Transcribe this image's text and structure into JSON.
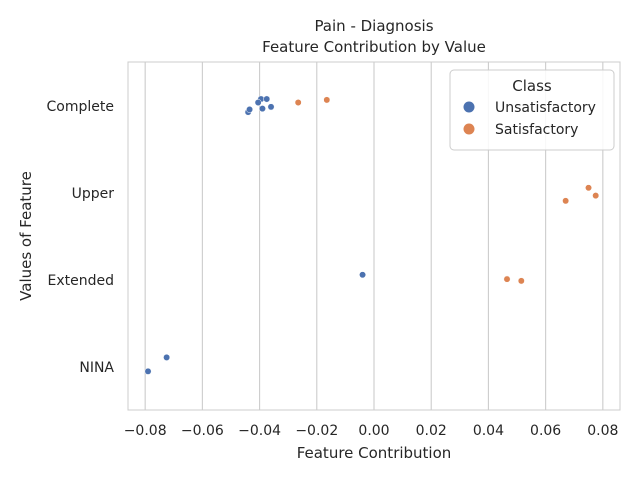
{
  "chart_data": {
    "type": "scatter",
    "title": "Pain - Diagnosis",
    "subtitle": "Feature Contribution by Value",
    "xlabel": "Feature Contribution",
    "ylabel": "Values of Feature",
    "xlim": [
      -0.086,
      0.086
    ],
    "xticks": [
      -0.08,
      -0.06,
      -0.04,
      -0.02,
      0.0,
      0.02,
      0.04,
      0.06,
      0.08
    ],
    "xtick_labels": [
      "−0.08",
      "−0.06",
      "−0.04",
      "−0.02",
      "0.00",
      "0.02",
      "0.04",
      "0.06",
      "0.08"
    ],
    "categories": [
      "Complete",
      "Upper",
      "Extended",
      "NINA"
    ],
    "grid": "vertical",
    "legend": {
      "title": "Class",
      "placement": "top-right"
    },
    "series": [
      {
        "name": "Unsatisfactory",
        "color": "#4c72b0",
        "points": [
          {
            "category": "Complete",
            "x": -0.0395,
            "jitter": 0.08
          },
          {
            "category": "Complete",
            "x": -0.0375,
            "jitter": 0.08
          },
          {
            "category": "Complete",
            "x": -0.0405,
            "jitter": 0.04
          },
          {
            "category": "Complete",
            "x": -0.036,
            "jitter": -0.01
          },
          {
            "category": "Complete",
            "x": -0.039,
            "jitter": -0.03
          },
          {
            "category": "Complete",
            "x": -0.044,
            "jitter": -0.07
          },
          {
            "category": "Complete",
            "x": -0.0435,
            "jitter": -0.04
          },
          {
            "category": "Extended",
            "x": -0.004,
            "jitter": 0.06
          },
          {
            "category": "NINA",
            "x": -0.0725,
            "jitter": 0.11
          },
          {
            "category": "NINA",
            "x": -0.079,
            "jitter": -0.05
          }
        ]
      },
      {
        "name": "Satisfactory",
        "color": "#dd8452",
        "points": [
          {
            "category": "Complete",
            "x": -0.0165,
            "jitter": 0.07
          },
          {
            "category": "Complete",
            "x": -0.0265,
            "jitter": 0.04
          },
          {
            "category": "Upper",
            "x": 0.075,
            "jitter": 0.06
          },
          {
            "category": "Upper",
            "x": 0.0775,
            "jitter": -0.03
          },
          {
            "category": "Upper",
            "x": 0.067,
            "jitter": -0.09
          },
          {
            "category": "Extended",
            "x": 0.0465,
            "jitter": 0.01
          },
          {
            "category": "Extended",
            "x": 0.0515,
            "jitter": -0.01
          }
        ]
      }
    ]
  }
}
